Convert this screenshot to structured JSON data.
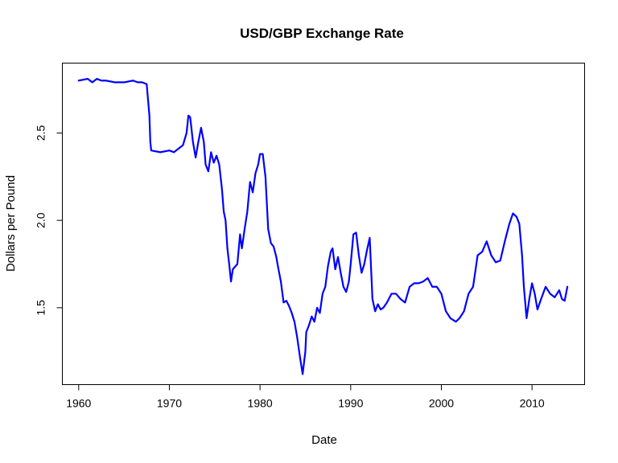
{
  "chart_data": {
    "type": "line",
    "title": "USD/GBP Exchange Rate",
    "xlabel": "Date",
    "ylabel": "Dollars per Pound",
    "xlim": [
      1958.2,
      2015.8
    ],
    "ylim": [
      1.06,
      2.9
    ],
    "xticks": [
      1960,
      1970,
      1980,
      1990,
      2000,
      2010
    ],
    "yticks": [
      1.5,
      2.0,
      2.5
    ],
    "grid": false,
    "legend": "none",
    "line_color": "#0000ff",
    "series": [
      {
        "x": [
          1960.0,
          1961.0,
          1961.5,
          1962.0,
          1962.5,
          1963.0,
          1964.0,
          1965.0,
          1966.0,
          1966.5,
          1967.0,
          1967.5,
          1967.8,
          1967.9,
          1968.0,
          1969.0,
          1970.0,
          1970.5,
          1971.0,
          1971.5,
          1971.9,
          1972.1,
          1972.3,
          1972.6,
          1972.9,
          1973.2,
          1973.5,
          1973.8,
          1974.0,
          1974.3,
          1974.6,
          1974.9,
          1975.2,
          1975.5,
          1975.8,
          1976.0,
          1976.2,
          1976.4,
          1976.6,
          1976.8,
          1977.0,
          1977.5,
          1977.8,
          1978.0,
          1978.3,
          1978.6,
          1978.9,
          1979.2,
          1979.5,
          1979.8,
          1980.0,
          1980.3,
          1980.6,
          1980.9,
          1981.2,
          1981.5,
          1981.8,
          1982.0,
          1982.3,
          1982.6,
          1982.9,
          1983.2,
          1983.5,
          1983.8,
          1984.1,
          1984.4,
          1984.7,
          1985.0,
          1985.1,
          1985.4,
          1985.7,
          1986.0,
          1986.3,
          1986.6,
          1986.9,
          1987.2,
          1987.5,
          1987.8,
          1988.0,
          1988.3,
          1988.6,
          1988.9,
          1989.2,
          1989.5,
          1989.8,
          1990.0,
          1990.3,
          1990.6,
          1990.9,
          1991.2,
          1991.5,
          1991.8,
          1992.1,
          1992.4,
          1992.7,
          1993.0,
          1993.3,
          1993.6,
          1994.0,
          1994.5,
          1995.0,
          1995.5,
          1996.0,
          1996.5,
          1997.0,
          1997.5,
          1998.0,
          1998.5,
          1999.0,
          1999.5,
          2000.0,
          2000.5,
          2001.0,
          2001.3,
          2001.6,
          2002.0,
          2002.5,
          2003.0,
          2003.5,
          2004.0,
          2004.5,
          2005.0,
          2005.5,
          2006.0,
          2006.5,
          2007.0,
          2007.5,
          2007.9,
          2008.3,
          2008.6,
          2008.9,
          2009.1,
          2009.4,
          2009.7,
          2010.0,
          2010.3,
          2010.6,
          2011.0,
          2011.5,
          2012.0,
          2012.5,
          2013.0,
          2013.3,
          2013.6,
          2013.9
        ],
        "y": [
          2.8,
          2.81,
          2.79,
          2.81,
          2.8,
          2.8,
          2.79,
          2.79,
          2.8,
          2.79,
          2.79,
          2.78,
          2.6,
          2.45,
          2.4,
          2.39,
          2.4,
          2.39,
          2.41,
          2.43,
          2.5,
          2.6,
          2.59,
          2.45,
          2.36,
          2.45,
          2.53,
          2.45,
          2.32,
          2.28,
          2.39,
          2.33,
          2.37,
          2.32,
          2.18,
          2.05,
          2.0,
          1.84,
          1.75,
          1.65,
          1.72,
          1.75,
          1.92,
          1.84,
          1.95,
          2.05,
          2.22,
          2.16,
          2.27,
          2.32,
          2.38,
          2.38,
          2.25,
          1.95,
          1.87,
          1.85,
          1.79,
          1.73,
          1.65,
          1.53,
          1.54,
          1.51,
          1.47,
          1.42,
          1.33,
          1.22,
          1.12,
          1.25,
          1.36,
          1.4,
          1.45,
          1.42,
          1.5,
          1.47,
          1.58,
          1.62,
          1.74,
          1.82,
          1.84,
          1.72,
          1.79,
          1.7,
          1.62,
          1.59,
          1.65,
          1.75,
          1.92,
          1.93,
          1.8,
          1.7,
          1.75,
          1.83,
          1.9,
          1.55,
          1.48,
          1.52,
          1.49,
          1.5,
          1.53,
          1.58,
          1.58,
          1.55,
          1.53,
          1.62,
          1.64,
          1.64,
          1.65,
          1.67,
          1.62,
          1.62,
          1.58,
          1.48,
          1.44,
          1.43,
          1.42,
          1.44,
          1.48,
          1.58,
          1.62,
          1.8,
          1.82,
          1.88,
          1.8,
          1.76,
          1.77,
          1.88,
          1.98,
          2.04,
          2.02,
          1.98,
          1.8,
          1.62,
          1.44,
          1.55,
          1.64,
          1.58,
          1.49,
          1.55,
          1.62,
          1.58,
          1.56,
          1.6,
          1.55,
          1.54,
          1.62
        ]
      }
    ]
  }
}
